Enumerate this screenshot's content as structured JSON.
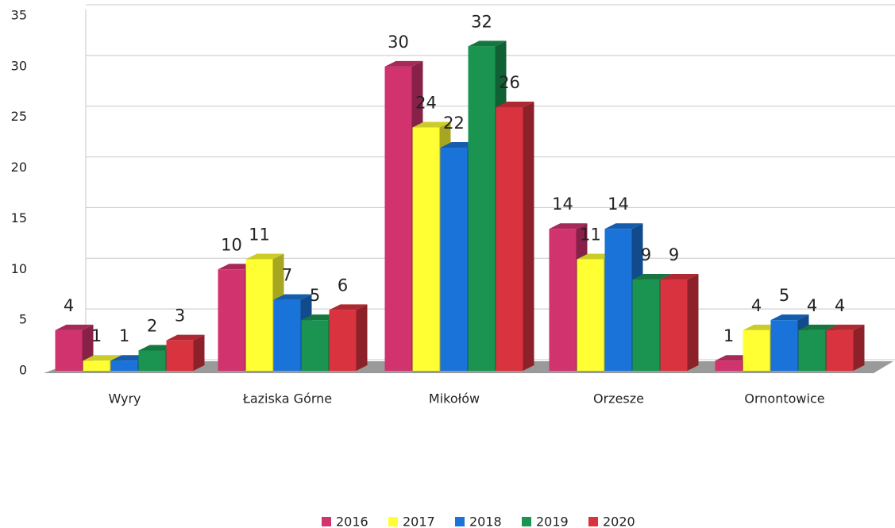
{
  "chart_data": {
    "type": "bar3d",
    "categories": [
      "Wyry",
      "Łaziska Górne",
      "Mikołów",
      "Orzesze",
      "Ornontowice"
    ],
    "series": [
      {
        "name": "2016",
        "color": "#d0336e",
        "values": [
          4,
          10,
          30,
          14,
          1
        ]
      },
      {
        "name": "2017",
        "color": "#ffff33",
        "values": [
          1,
          11,
          24,
          11,
          4
        ]
      },
      {
        "name": "2018",
        "color": "#1a73d8",
        "values": [
          1,
          7,
          22,
          14,
          5
        ]
      },
      {
        "name": "2019",
        "color": "#1a9450",
        "values": [
          2,
          5,
          32,
          9,
          4
        ]
      },
      {
        "name": "2020",
        "color": "#d9333f",
        "values": [
          3,
          6,
          26,
          9,
          4
        ]
      }
    ],
    "ylim": [
      0,
      35
    ],
    "yticks": [
      0,
      5,
      10,
      15,
      20,
      25,
      30,
      35
    ],
    "grid": true,
    "legend": "bottom"
  }
}
